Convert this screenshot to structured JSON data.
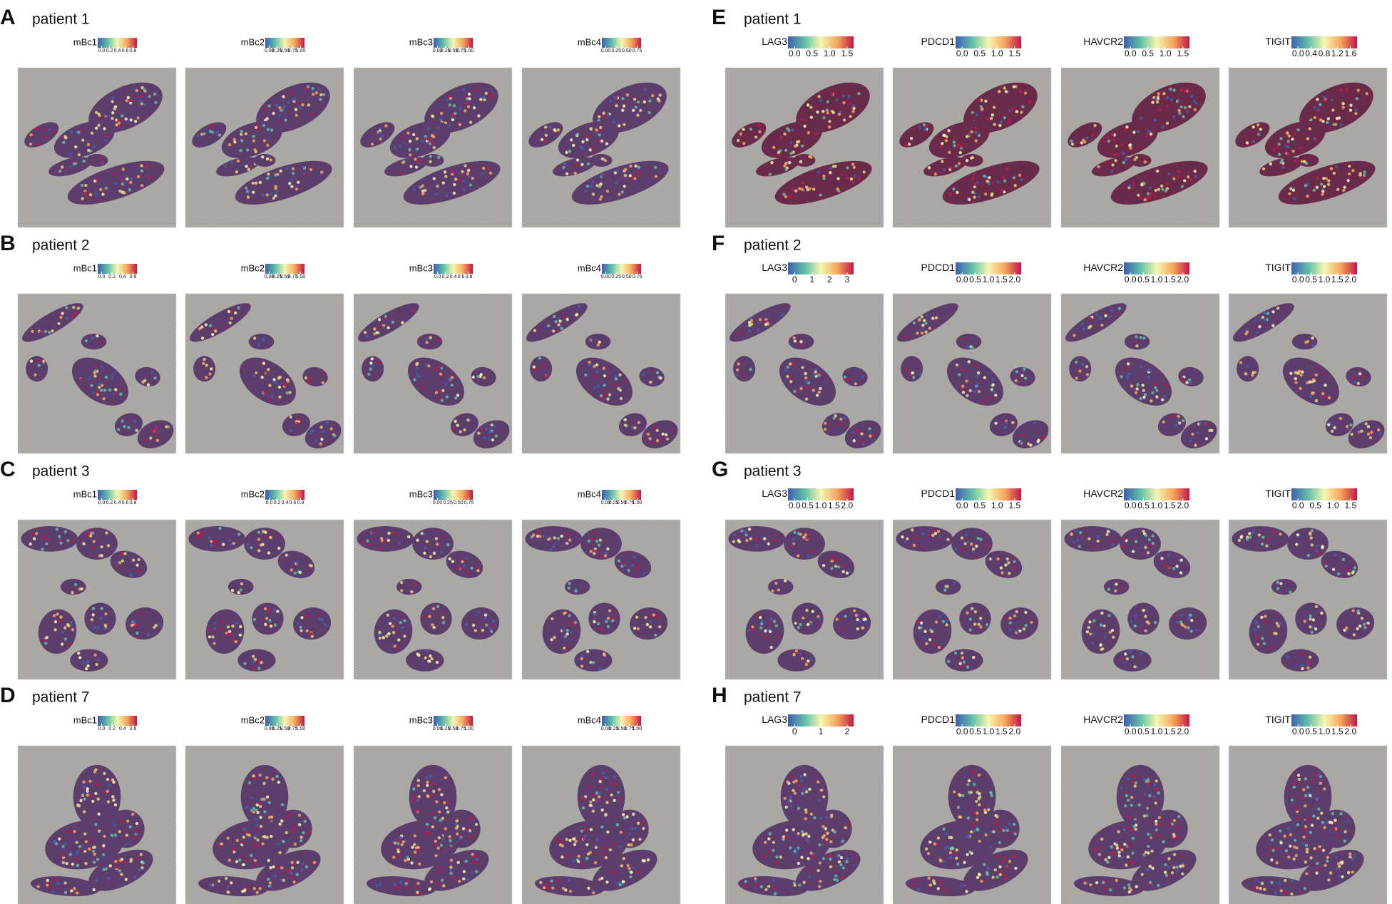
{
  "panels": [
    {
      "letter": "A",
      "title": "patient 1",
      "plots": [
        {
          "label": "mBc1",
          "ticks": [
            "0.0",
            "0.2",
            "0.4",
            "0.6",
            "0.8"
          ]
        },
        {
          "label": "mBc2",
          "ticks": [
            "0.00",
            "0.25",
            "0.50",
            "0.75",
            "1.00"
          ]
        },
        {
          "label": "mBc3",
          "ticks": [
            "0.00",
            "0.25",
            "0.50",
            "0.75",
            "1.00"
          ]
        },
        {
          "label": "mBc4",
          "ticks": [
            "0.00",
            "0.25",
            "0.50",
            "0.75"
          ]
        }
      ]
    },
    {
      "letter": "B",
      "title": "patient 2",
      "plots": [
        {
          "label": "mBc1",
          "ticks": [
            "0.0",
            "0.2",
            "0.4",
            "0.6"
          ]
        },
        {
          "label": "mBc2",
          "ticks": [
            "0.00",
            "0.25",
            "0.50",
            "0.75",
            "1.00"
          ]
        },
        {
          "label": "mBc3",
          "ticks": [
            "0.0",
            "0.2",
            "0.4",
            "0.6",
            "0.8"
          ]
        },
        {
          "label": "mBc4",
          "ticks": [
            "0.00",
            "0.25",
            "0.50",
            "0.75"
          ]
        }
      ]
    },
    {
      "letter": "C",
      "title": "patient 3",
      "plots": [
        {
          "label": "mBc1",
          "ticks": [
            "0.0",
            "0.2",
            "0.4",
            "0.6",
            "0.8"
          ]
        },
        {
          "label": "mBc2",
          "ticks": [
            "0.0",
            "0.2",
            "0.4",
            "0.6",
            "0.8"
          ]
        },
        {
          "label": "mBc3",
          "ticks": [
            "0.00",
            "0.25",
            "0.50",
            "0.75"
          ]
        },
        {
          "label": "mBc4",
          "ticks": [
            "0.00",
            "0.25",
            "0.50",
            "0.75",
            "1.00"
          ]
        }
      ]
    },
    {
      "letter": "D",
      "title": "patient 7",
      "plots": [
        {
          "label": "mBc1",
          "ticks": [
            "0.0",
            "0.2",
            "0.4",
            "0.6"
          ]
        },
        {
          "label": "mBc2",
          "ticks": [
            "0.00",
            "0.25",
            "0.50",
            "0.75",
            "1.00"
          ]
        },
        {
          "label": "mBc3",
          "ticks": [
            "0.00",
            "0.25",
            "0.50",
            "0.75",
            "1.00"
          ]
        },
        {
          "label": "mBc4",
          "ticks": [
            "0.00",
            "0.25",
            "0.50",
            "0.75",
            "1.00"
          ]
        }
      ]
    },
    {
      "letter": "E",
      "title": "patient 1",
      "plots": [
        {
          "label": "LAG3",
          "ticks": [
            "0.0",
            "0.5",
            "1.0",
            "1.5"
          ]
        },
        {
          "label": "PDCD1",
          "ticks": [
            "0.0",
            "0.5",
            "1.0",
            "1.5"
          ]
        },
        {
          "label": "HAVCR2",
          "ticks": [
            "0.0",
            "0.5",
            "1.0",
            "1.5"
          ]
        },
        {
          "label": "TIGIT",
          "ticks": [
            "0.0",
            "0.4",
            "0.8",
            "1.2",
            "1.6"
          ]
        }
      ]
    },
    {
      "letter": "F",
      "title": "patient 2",
      "plots": [
        {
          "label": "LAG3",
          "ticks": [
            "0",
            "1",
            "2",
            "3"
          ]
        },
        {
          "label": "PDCD1",
          "ticks": [
            "0.0",
            "0.5",
            "1.0",
            "1.5",
            "2.0"
          ]
        },
        {
          "label": "HAVCR2",
          "ticks": [
            "0.0",
            "0.5",
            "1.0",
            "1.5",
            "2.0"
          ]
        },
        {
          "label": "TIGIT",
          "ticks": [
            "0.0",
            "0.5",
            "1.0",
            "1.5",
            "2.0"
          ]
        }
      ]
    },
    {
      "letter": "G",
      "title": "patient 3",
      "plots": [
        {
          "label": "LAG3",
          "ticks": [
            "0.0",
            "0.5",
            "1.0",
            "1.5",
            "2.0"
          ]
        },
        {
          "label": "PDCD1",
          "ticks": [
            "0.0",
            "0.5",
            "1.0",
            "1.5"
          ]
        },
        {
          "label": "HAVCR2",
          "ticks": [
            "0.0",
            "0.5",
            "1.0",
            "1.5",
            "2.0"
          ]
        },
        {
          "label": "TIGIT",
          "ticks": [
            "0.0",
            "0.5",
            "1.0",
            "1.5"
          ]
        }
      ]
    },
    {
      "letter": "H",
      "title": "patient 7",
      "plots": [
        {
          "label": "LAG3",
          "ticks": [
            "0",
            "1",
            "2"
          ]
        },
        {
          "label": "PDCD1",
          "ticks": [
            "0.0",
            "0.5",
            "1.0",
            "1.5",
            "2.0"
          ]
        },
        {
          "label": "HAVCR2",
          "ticks": [
            "0.0",
            "0.5",
            "1.0",
            "1.5",
            "2.0"
          ]
        },
        {
          "label": "TIGIT",
          "ticks": [
            "0.0",
            "0.5",
            "1.0",
            "1.5",
            "2.0"
          ]
        }
      ]
    }
  ]
}
